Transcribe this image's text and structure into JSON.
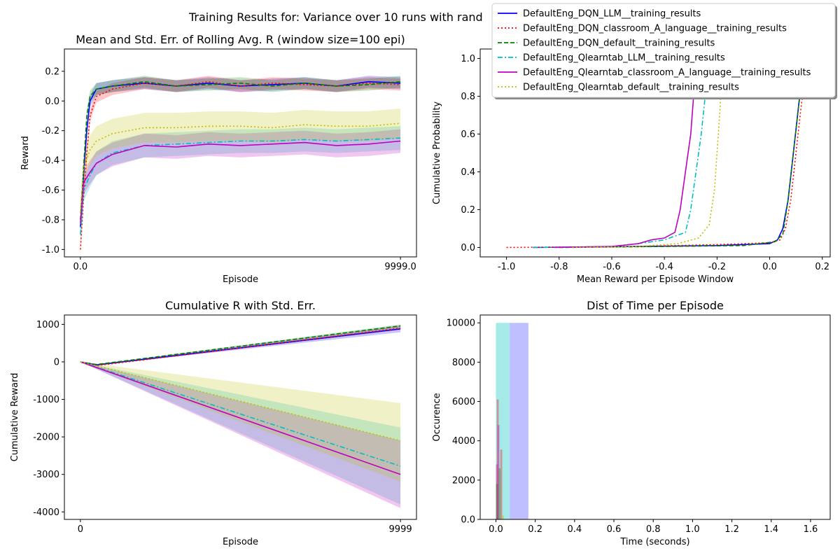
{
  "suptitle": "Training Results for: Variance over 10 runs with rand",
  "colors": {
    "DQN_LLM": "#0000ff",
    "DQN_classroom": "#ff0000",
    "DQN_default": "#008000",
    "Q_LLM": "#00bfbf",
    "Q_classroom": "#bf00bf",
    "Q_default": "#bfbf00"
  },
  "legend": {
    "placement": "top-right (figure)",
    "entries": [
      {
        "key": "DQN_LLM",
        "label": "DefaultEng_DQN_LLM__training_results",
        "style": "solid"
      },
      {
        "key": "DQN_classroom",
        "label": "DefaultEng_DQN_classroom_A_language__training_results",
        "style": "dotted"
      },
      {
        "key": "DQN_default",
        "label": "DefaultEng_DQN_default__training_results",
        "style": "dashed"
      },
      {
        "key": "Q_LLM",
        "label": "DefaultEng_Qlearntab_LLM__training_results",
        "style": "dashdot"
      },
      {
        "key": "Q_classroom",
        "label": "DefaultEng_Qlearntab_classroom_A_language__training_results",
        "style": "solid"
      },
      {
        "key": "Q_default",
        "label": "DefaultEng_Qlearntab_default__training_results",
        "style": "dotted"
      }
    ]
  },
  "chart_data": [
    {
      "id": "rolling",
      "type": "line",
      "title": "Mean and Std. Err. of Rolling Avg. R (window size=100 epi)",
      "xlabel": "Episode",
      "ylabel": "Reward",
      "xlim": [
        -500,
        10500
      ],
      "ylim": [
        -1.05,
        0.35
      ],
      "xticks": [
        0,
        9999
      ],
      "yticks": [
        -1.0,
        -0.8,
        -0.6,
        -0.4,
        -0.2,
        0.0,
        0.2
      ],
      "grid": false,
      "series": [
        {
          "key": "DQN_LLM",
          "x": [
            0,
            100,
            200,
            300,
            500,
            1000,
            2000,
            3000,
            4000,
            5000,
            6000,
            7000,
            8000,
            9000,
            9999
          ],
          "y": [
            -0.85,
            -0.5,
            -0.2,
            0.0,
            0.08,
            0.1,
            0.12,
            0.1,
            0.12,
            0.1,
            0.11,
            0.12,
            0.1,
            0.13,
            0.12
          ],
          "err": 0.04
        },
        {
          "key": "DQN_classroom",
          "x": [
            0,
            100,
            200,
            300,
            500,
            1000,
            2000,
            3000,
            4000,
            5000,
            6000,
            7000,
            8000,
            9000,
            9999
          ],
          "y": [
            -1.0,
            -0.65,
            -0.35,
            -0.1,
            0.03,
            0.08,
            0.12,
            0.1,
            0.13,
            0.1,
            0.12,
            0.11,
            0.1,
            0.12,
            0.11
          ],
          "err": 0.04
        },
        {
          "key": "DQN_default",
          "x": [
            0,
            100,
            200,
            300,
            500,
            1000,
            2000,
            3000,
            4000,
            5000,
            6000,
            7000,
            8000,
            9000,
            9999
          ],
          "y": [
            -0.8,
            -0.45,
            -0.1,
            0.03,
            0.08,
            0.1,
            0.13,
            0.1,
            0.11,
            0.12,
            0.1,
            0.12,
            0.1,
            0.11,
            0.13
          ],
          "err": 0.04
        },
        {
          "key": "Q_LLM",
          "x": [
            0,
            100,
            300,
            500,
            1000,
            2000,
            3000,
            4000,
            5000,
            6000,
            7000,
            8000,
            9000,
            9999
          ],
          "y": [
            -0.9,
            -0.6,
            -0.5,
            -0.42,
            -0.35,
            -0.3,
            -0.29,
            -0.28,
            -0.27,
            -0.27,
            -0.26,
            -0.27,
            -0.26,
            -0.25
          ],
          "err": 0.08
        },
        {
          "key": "Q_classroom",
          "x": [
            0,
            100,
            300,
            500,
            1000,
            2000,
            3000,
            4000,
            5000,
            6000,
            7000,
            8000,
            9000,
            9999
          ],
          "y": [
            -0.82,
            -0.55,
            -0.48,
            -0.42,
            -0.36,
            -0.3,
            -0.31,
            -0.29,
            -0.3,
            -0.29,
            -0.28,
            -0.3,
            -0.29,
            -0.27
          ],
          "err": 0.08
        },
        {
          "key": "Q_default",
          "x": [
            0,
            100,
            300,
            500,
            1000,
            2000,
            3000,
            4000,
            5000,
            6000,
            7000,
            8000,
            9000,
            9999
          ],
          "y": [
            -0.75,
            -0.45,
            -0.33,
            -0.27,
            -0.22,
            -0.18,
            -0.18,
            -0.17,
            -0.17,
            -0.18,
            -0.16,
            -0.17,
            -0.17,
            -0.15
          ],
          "err": 0.1
        }
      ]
    },
    {
      "id": "cdf",
      "type": "line",
      "title": "",
      "xlabel": "Mean Reward per Episode Window",
      "ylabel": "Cumulative Probability",
      "xlim": [
        -1.1,
        0.23
      ],
      "ylim": [
        -0.05,
        1.05
      ],
      "xticks": [
        -1.0,
        -0.8,
        -0.6,
        -0.4,
        -0.2,
        0.0,
        0.2
      ],
      "yticks": [
        0.0,
        0.2,
        0.4,
        0.6,
        0.8,
        1.0
      ],
      "grid": false,
      "series": [
        {
          "key": "DQN_LLM",
          "x": [
            -0.9,
            -0.5,
            -0.2,
            0.0,
            0.03,
            0.05,
            0.07,
            0.09,
            0.11,
            0.125
          ],
          "y": [
            0.0,
            0.005,
            0.01,
            0.02,
            0.04,
            0.1,
            0.25,
            0.5,
            0.75,
            0.95
          ]
        },
        {
          "key": "DQN_classroom",
          "x": [
            -1.0,
            -0.5,
            -0.2,
            0.0,
            0.04,
            0.06,
            0.08,
            0.1,
            0.12,
            0.14
          ],
          "y": [
            0.0,
            0.005,
            0.015,
            0.025,
            0.04,
            0.1,
            0.25,
            0.5,
            0.75,
            0.95
          ]
        },
        {
          "key": "DQN_default",
          "x": [
            -0.8,
            -0.4,
            -0.1,
            0.02,
            0.05,
            0.07,
            0.09,
            0.11,
            0.13
          ],
          "y": [
            0.0,
            0.005,
            0.01,
            0.03,
            0.07,
            0.25,
            0.5,
            0.75,
            0.95
          ]
        },
        {
          "key": "Q_LLM",
          "x": [
            -0.9,
            -0.6,
            -0.5,
            -0.4,
            -0.32,
            -0.3,
            -0.28,
            -0.26,
            -0.245,
            -0.235
          ],
          "y": [
            0.0,
            0.005,
            0.02,
            0.04,
            0.08,
            0.2,
            0.4,
            0.6,
            0.8,
            0.97
          ]
        },
        {
          "key": "Q_classroom",
          "x": [
            -0.82,
            -0.6,
            -0.5,
            -0.45,
            -0.4,
            -0.36,
            -0.34,
            -0.32,
            -0.3,
            -0.28
          ],
          "y": [
            0.0,
            0.005,
            0.02,
            0.04,
            0.05,
            0.08,
            0.2,
            0.4,
            0.6,
            0.97
          ]
        },
        {
          "key": "Q_default",
          "x": [
            -0.75,
            -0.5,
            -0.35,
            -0.27,
            -0.23,
            -0.21,
            -0.2,
            -0.19,
            -0.18
          ],
          "y": [
            0.0,
            0.005,
            0.02,
            0.05,
            0.12,
            0.3,
            0.5,
            0.7,
            0.97
          ]
        }
      ]
    },
    {
      "id": "cumulative",
      "type": "line",
      "title": "Cumulative R with Std. Err.",
      "xlabel": "Episode",
      "ylabel": "Cumulative Reward",
      "xlim": [
        -500,
        10500
      ],
      "ylim": [
        -4200,
        1250
      ],
      "xticks": [
        0,
        9999
      ],
      "yticks": [
        -4000,
        -3000,
        -2000,
        -1000,
        0,
        1000
      ],
      "grid": false,
      "series": [
        {
          "key": "DQN_LLM",
          "x": [
            0,
            500,
            9999
          ],
          "y": [
            0,
            -80,
            880
          ],
          "lo": [
            0,
            -90,
            790
          ],
          "hi": [
            0,
            -70,
            970
          ]
        },
        {
          "key": "DQN_classroom",
          "x": [
            0,
            500,
            9999
          ],
          "y": [
            0,
            -100,
            900
          ],
          "lo": [
            0,
            -110,
            850
          ],
          "hi": [
            0,
            -90,
            950
          ]
        },
        {
          "key": "DQN_default",
          "x": [
            0,
            500,
            9999
          ],
          "y": [
            0,
            -70,
            960
          ],
          "lo": [
            0,
            -80,
            920
          ],
          "hi": [
            0,
            -60,
            1000
          ]
        },
        {
          "key": "Q_LLM",
          "x": [
            0,
            9999
          ],
          "y": [
            0,
            -2780
          ],
          "lo": [
            0,
            -3800
          ],
          "hi": [
            0,
            -1750
          ]
        },
        {
          "key": "Q_classroom",
          "x": [
            0,
            9999
          ],
          "y": [
            0,
            -3000
          ],
          "lo": [
            0,
            -3900
          ],
          "hi": [
            0,
            -2100
          ]
        },
        {
          "key": "Q_default",
          "x": [
            0,
            9999
          ],
          "y": [
            0,
            -2100
          ],
          "lo": [
            0,
            -3200
          ],
          "hi": [
            0,
            -1100
          ]
        }
      ]
    },
    {
      "id": "hist",
      "type": "bar",
      "title": "Dist of Time per Episode",
      "xlabel": "Time (seconds)",
      "ylabel": "Occurence",
      "xlim": [
        -0.08,
        1.7
      ],
      "ylim": [
        0,
        10400
      ],
      "xticks": [
        0.0,
        0.2,
        0.4,
        0.6,
        0.8,
        1.0,
        1.2,
        1.4,
        1.6
      ],
      "yticks": [
        0,
        2000,
        4000,
        6000,
        8000,
        10000
      ],
      "grid": false,
      "bars": [
        {
          "x0": 0.07,
          "x1": 0.165,
          "h": 10000,
          "color": "#0000ff",
          "alpha": 0.25
        },
        {
          "x0": 0.0,
          "x1": 0.07,
          "h": 10000,
          "color": "#00bfbf",
          "alpha": 0.35
        },
        {
          "x0": 0.0,
          "x1": 0.01,
          "h": 2800,
          "color": "#bf00bf",
          "alpha": 0.35
        },
        {
          "x0": 0.0,
          "x1": 0.012,
          "h": 1800,
          "color": "#008000",
          "alpha": 0.35
        },
        {
          "x0": 0.004,
          "x1": 0.014,
          "h": 6100,
          "color": "#ff0000",
          "alpha": 0.35
        },
        {
          "x0": 0.008,
          "x1": 0.018,
          "h": 4800,
          "color": "#bf00bf",
          "alpha": 0.35
        },
        {
          "x0": 0.014,
          "x1": 0.024,
          "h": 2600,
          "color": "#008000",
          "alpha": 0.35
        },
        {
          "x0": 0.022,
          "x1": 0.032,
          "h": 3550,
          "color": "#ff0000",
          "alpha": 0.35
        },
        {
          "x0": 0.03,
          "x1": 0.04,
          "h": 200,
          "color": "#bfbf00",
          "alpha": 0.45
        }
      ]
    }
  ]
}
